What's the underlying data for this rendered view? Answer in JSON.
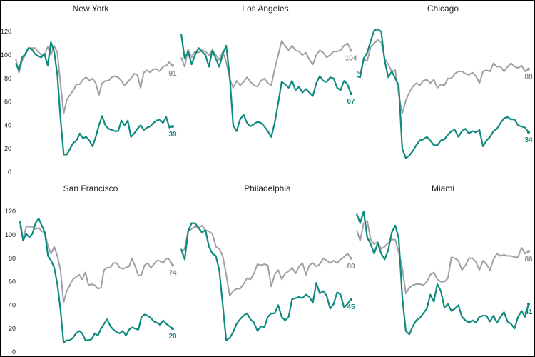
{
  "chart_data": {
    "type": "line",
    "y_ticks": [
      0,
      20,
      40,
      60,
      80,
      100,
      120
    ],
    "ylim": [
      0,
      125
    ],
    "colors": {
      "Series A": "#a0a0a4",
      "Series B": "#0e8a7e"
    },
    "legend": "none",
    "grid": false,
    "panels": [
      {
        "title": "New York",
        "series": [
          {
            "values": [
              97,
              85,
              95,
              100,
              106,
              106,
              106,
              103,
              100,
              100,
              107,
              100,
              108,
              102,
              75,
              50,
              62,
              66,
              70,
              75,
              75,
              79,
              81,
              78,
              80,
              76,
              66,
              76,
              78,
              78,
              81,
              82,
              81,
              78,
              74,
              77,
              80,
              84,
              83,
              72,
              85,
              87,
              85,
              88,
              88,
              86,
              90,
              91,
              94,
              91
            ],
            "end_label": "91"
          },
          {
            "values": [
              93,
              87,
              98,
              101,
              106,
              105,
              101,
              99,
              98,
              101,
              91,
              111,
              103,
              83,
              45,
              15,
              15,
              20,
              25,
              27,
              33,
              29,
              30,
              27,
              22,
              30,
              40,
              48,
              40,
              37,
              36,
              35,
              35,
              44,
              40,
              44,
              30,
              33,
              37,
              40,
              36,
              38,
              39,
              42,
              44,
              45,
              42,
              47,
              38,
              39
            ],
            "end_label": "39"
          }
        ]
      },
      {
        "title": "Los Angeles",
        "series": [
          {
            "values": [
              98,
              90,
              105,
              98,
              103,
              102,
              104,
              103,
              100,
              104,
              100,
              96,
              103,
              94,
              80,
              72,
              78,
              74,
              77,
              81,
              77,
              74,
              73,
              78,
              80,
              76,
              74,
              88,
              100,
              112,
              108,
              104,
              108,
              104,
              103,
              100,
              102,
              96,
              92,
              100,
              104,
              102,
              98,
              100,
              103,
              103,
              104,
              108,
              110,
              104
            ],
            "end_label": "104"
          },
          {
            "values": [
              118,
              97,
              103,
              92,
              100,
              106,
              103,
              100,
              90,
              104,
              97,
              90,
              101,
              108,
              82,
              40,
              35,
              45,
              49,
              42,
              39,
              41,
              43,
              42,
              39,
              35,
              30,
              42,
              59,
              77,
              75,
              72,
              78,
              70,
              73,
              68,
              71,
              68,
              65,
              76,
              82,
              78,
              77,
              81,
              80,
              72,
              70,
              78,
              75,
              67
            ],
            "end_label": "67"
          }
        ]
      },
      {
        "title": "Chicago",
        "series": [
          {
            "values": [
              86,
              84,
              96,
              95,
              107,
              110,
              113,
              111,
              97,
              92,
              86,
              87,
              66,
              50,
              61,
              68,
              73,
              76,
              74,
              78,
              79,
              76,
              79,
              72,
              75,
              74,
              80,
              80,
              84,
              86,
              86,
              84,
              83,
              85,
              82,
              76,
              86,
              87,
              86,
              93,
              90,
              90,
              86,
              90,
              93,
              90,
              89,
              91,
              86,
              88
            ],
            "end_label": "88"
          },
          {
            "values": [
              82,
              81,
              97,
              102,
              112,
              121,
              122,
              120,
              95,
              81,
              86,
              80,
              74,
              20,
              12,
              14,
              18,
              23,
              27,
              28,
              30,
              27,
              23,
              23,
              27,
              28,
              32,
              35,
              36,
              30,
              35,
              37,
              33,
              35,
              34,
              36,
              22,
              27,
              30,
              35,
              37,
              42,
              46,
              47,
              45,
              45,
              40,
              39,
              38,
              34
            ],
            "end_label": "34"
          }
        ]
      },
      {
        "title": "San Francisco",
        "series": [
          {
            "values": [
              108,
              96,
              107,
              107,
              107,
              105,
              106,
              103,
              102,
              90,
              84,
              90,
              82,
              70,
              42,
              52,
              57,
              62,
              64,
              66,
              62,
              68,
              57,
              58,
              57,
              54,
              55,
              70,
              72,
              72,
              76,
              76,
              72,
              71,
              72,
              73,
              80,
              73,
              65,
              66,
              74,
              76,
              72,
              75,
              78,
              78,
              76,
              80,
              79,
              74
            ],
            "end_label": "74"
          },
          {
            "values": [
              112,
              95,
              101,
              98,
              101,
              110,
              114,
              108,
              102,
              82,
              78,
              72,
              58,
              36,
              8,
              10,
              10,
              12,
              16,
              18,
              16,
              10,
              10,
              11,
              16,
              14,
              20,
              24,
              28,
              22,
              19,
              17,
              16,
              18,
              14,
              19,
              21,
              20,
              19,
              30,
              32,
              31,
              29,
              26,
              25,
              23,
              27,
              24,
              22,
              20
            ],
            "end_label": "20"
          }
        ]
      },
      {
        "title": "Philadelphia",
        "series": [
          {
            "values": [
              84,
              88,
              103,
              105,
              107,
              106,
              108,
              104,
              103,
              101,
              90,
              88,
              82,
              66,
              48,
              52,
              54,
              54,
              58,
              63,
              62,
              67,
              75,
              74,
              75,
              74,
              56,
              66,
              70,
              62,
              67,
              69,
              72,
              67,
              73,
              76,
              66,
              74,
              76,
              73,
              75,
              80,
              78,
              76,
              78,
              76,
              79,
              81,
              84,
              80
            ],
            "end_label": "80"
          },
          {
            "values": [
              88,
              79,
              103,
              110,
              110,
              106,
              102,
              104,
              90,
              84,
              82,
              70,
              40,
              10,
              12,
              17,
              24,
              28,
              31,
              33,
              28,
              25,
              18,
              22,
              21,
              30,
              33,
              33,
              40,
              30,
              27,
              30,
              45,
              46,
              47,
              46,
              49,
              47,
              42,
              59,
              50,
              52,
              48,
              37,
              41,
              51,
              49,
              38,
              41,
              45
            ],
            "end_label": "45"
          }
        ]
      },
      {
        "title": "Miami",
        "series": [
          {
            "values": [
              104,
              95,
              110,
              112,
              96,
              92,
              94,
              88,
              90,
              93,
              96,
              96,
              85,
              72,
              50,
              55,
              57,
              58,
              58,
              57,
              60,
              66,
              68,
              62,
              60,
              60,
              63,
              81,
              80,
              78,
              70,
              74,
              80,
              80,
              77,
              70,
              78,
              75,
              70,
              79,
              84,
              82,
              83,
              82,
              82,
              81,
              81,
              89,
              84,
              86
            ],
            "end_label": "86"
          },
          {
            "values": [
              118,
              110,
              120,
              98,
              92,
              84,
              93,
              84,
              79,
              87,
              102,
              108,
              97,
              47,
              18,
              15,
              22,
              27,
              29,
              33,
              37,
              49,
              43,
              58,
              52,
              38,
              41,
              35,
              37,
              40,
              30,
              27,
              25,
              27,
              25,
              30,
              31,
              31,
              26,
              31,
              25,
              30,
              34,
              26,
              24,
              20,
              30,
              35,
              30,
              41
            ],
            "end_label": "41"
          }
        ]
      }
    ]
  }
}
